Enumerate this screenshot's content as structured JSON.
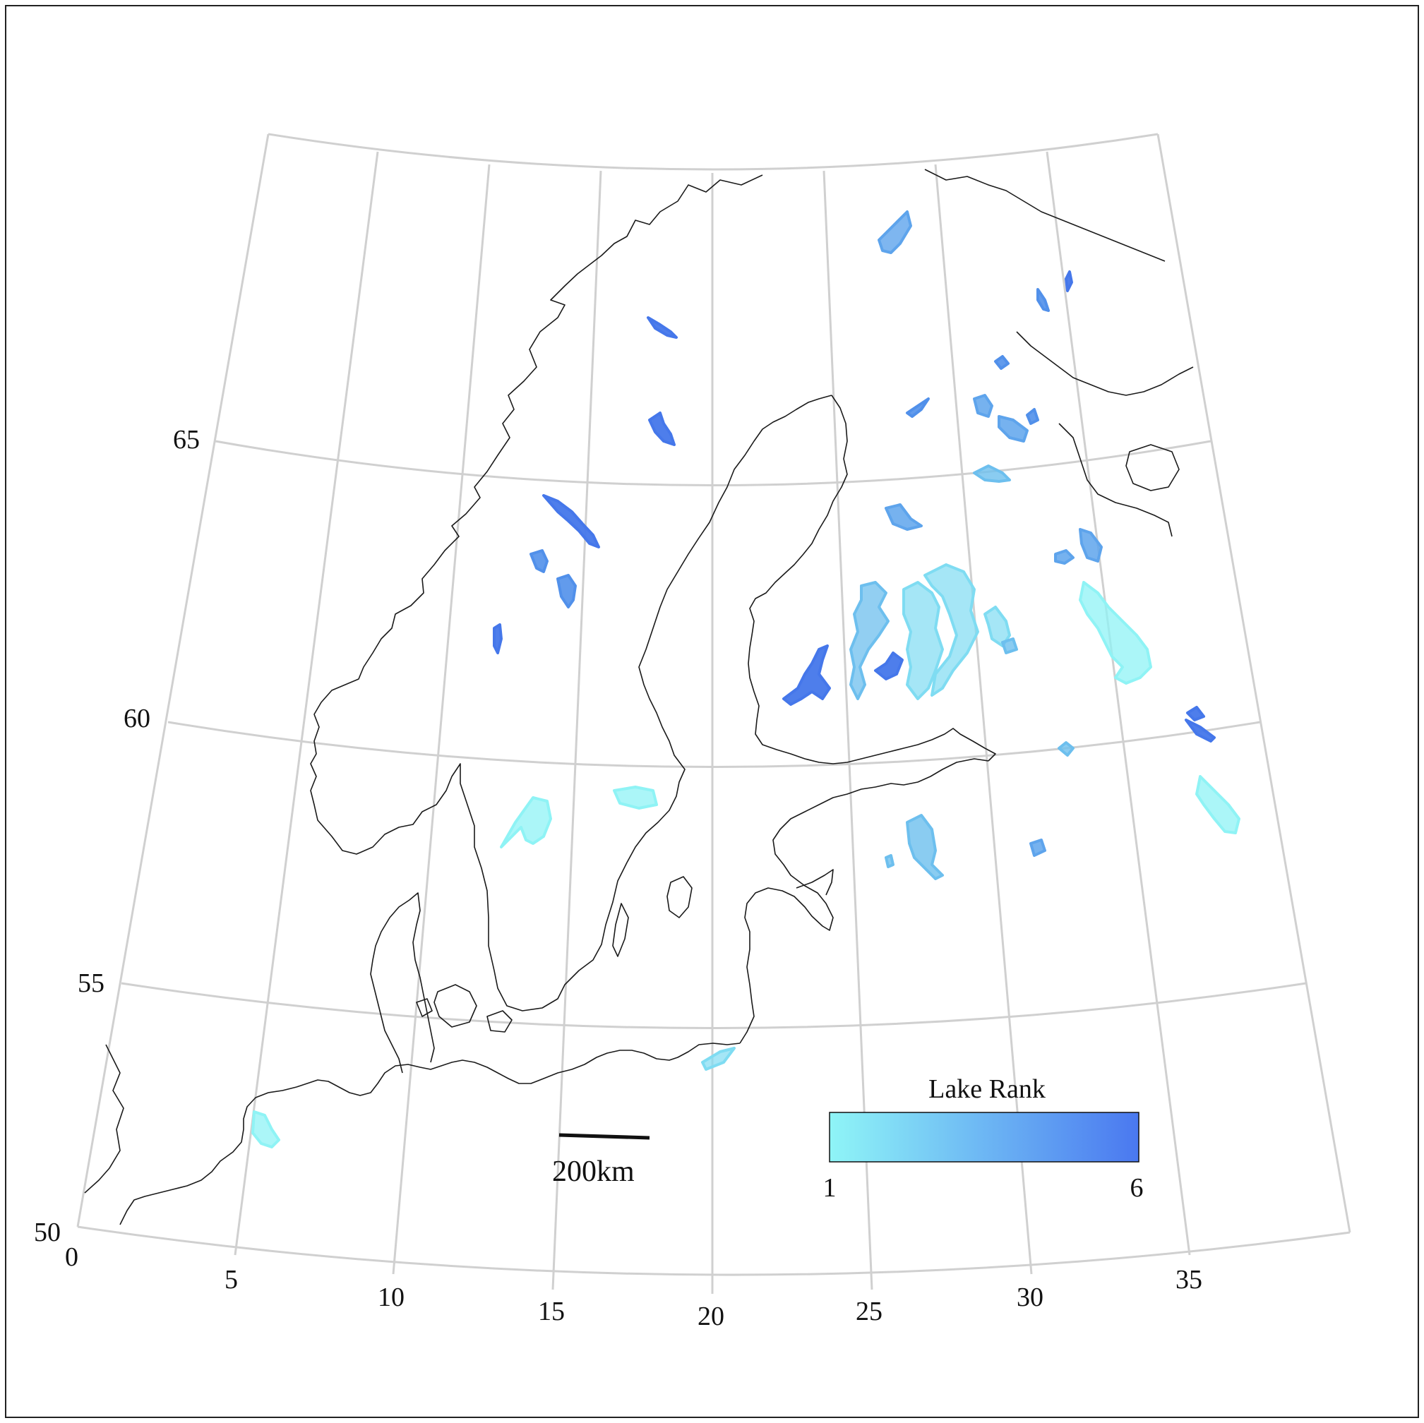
{
  "map": {
    "latitude_labels": [
      "65",
      "60",
      "55",
      "50"
    ],
    "longitude_labels": [
      "0",
      "5",
      "10",
      "15",
      "20",
      "25",
      "30",
      "35"
    ],
    "scale_bar": {
      "label": "200km"
    },
    "legend": {
      "title": "Lake Rank",
      "min_label": "1",
      "max_label": "6",
      "color_low": "#8ff5f7",
      "color_high": "#4a78f0"
    },
    "colors": {
      "graticule": "#d0d0d0",
      "coastline": "#1a1a1a",
      "rank_1": "#8ff3f5",
      "rank_2": "#7fdcf2",
      "rank_3": "#6dbfee",
      "rank_4": "#5ea4ec",
      "rank_5": "#5190ea",
      "rank_6": "#4577ea"
    },
    "lakes": [
      {
        "rank": 1
      },
      {
        "rank": 1
      },
      {
        "rank": 1
      },
      {
        "rank": 1
      },
      {
        "rank": 1
      },
      {
        "rank": 2
      },
      {
        "rank": 2
      },
      {
        "rank": 2
      },
      {
        "rank": 2
      },
      {
        "rank": 3
      },
      {
        "rank": 3
      },
      {
        "rank": 3
      },
      {
        "rank": 3
      },
      {
        "rank": 3
      },
      {
        "rank": 3
      },
      {
        "rank": 4
      },
      {
        "rank": 4
      },
      {
        "rank": 4
      },
      {
        "rank": 4
      },
      {
        "rank": 4
      },
      {
        "rank": 4
      },
      {
        "rank": 4
      },
      {
        "rank": 5
      },
      {
        "rank": 5
      },
      {
        "rank": 5
      },
      {
        "rank": 5
      },
      {
        "rank": 5
      },
      {
        "rank": 5
      },
      {
        "rank": 6
      },
      {
        "rank": 6
      },
      {
        "rank": 6
      },
      {
        "rank": 6
      },
      {
        "rank": 6
      },
      {
        "rank": 6
      },
      {
        "rank": 6
      },
      {
        "rank": 6
      },
      {
        "rank": 6
      }
    ]
  }
}
